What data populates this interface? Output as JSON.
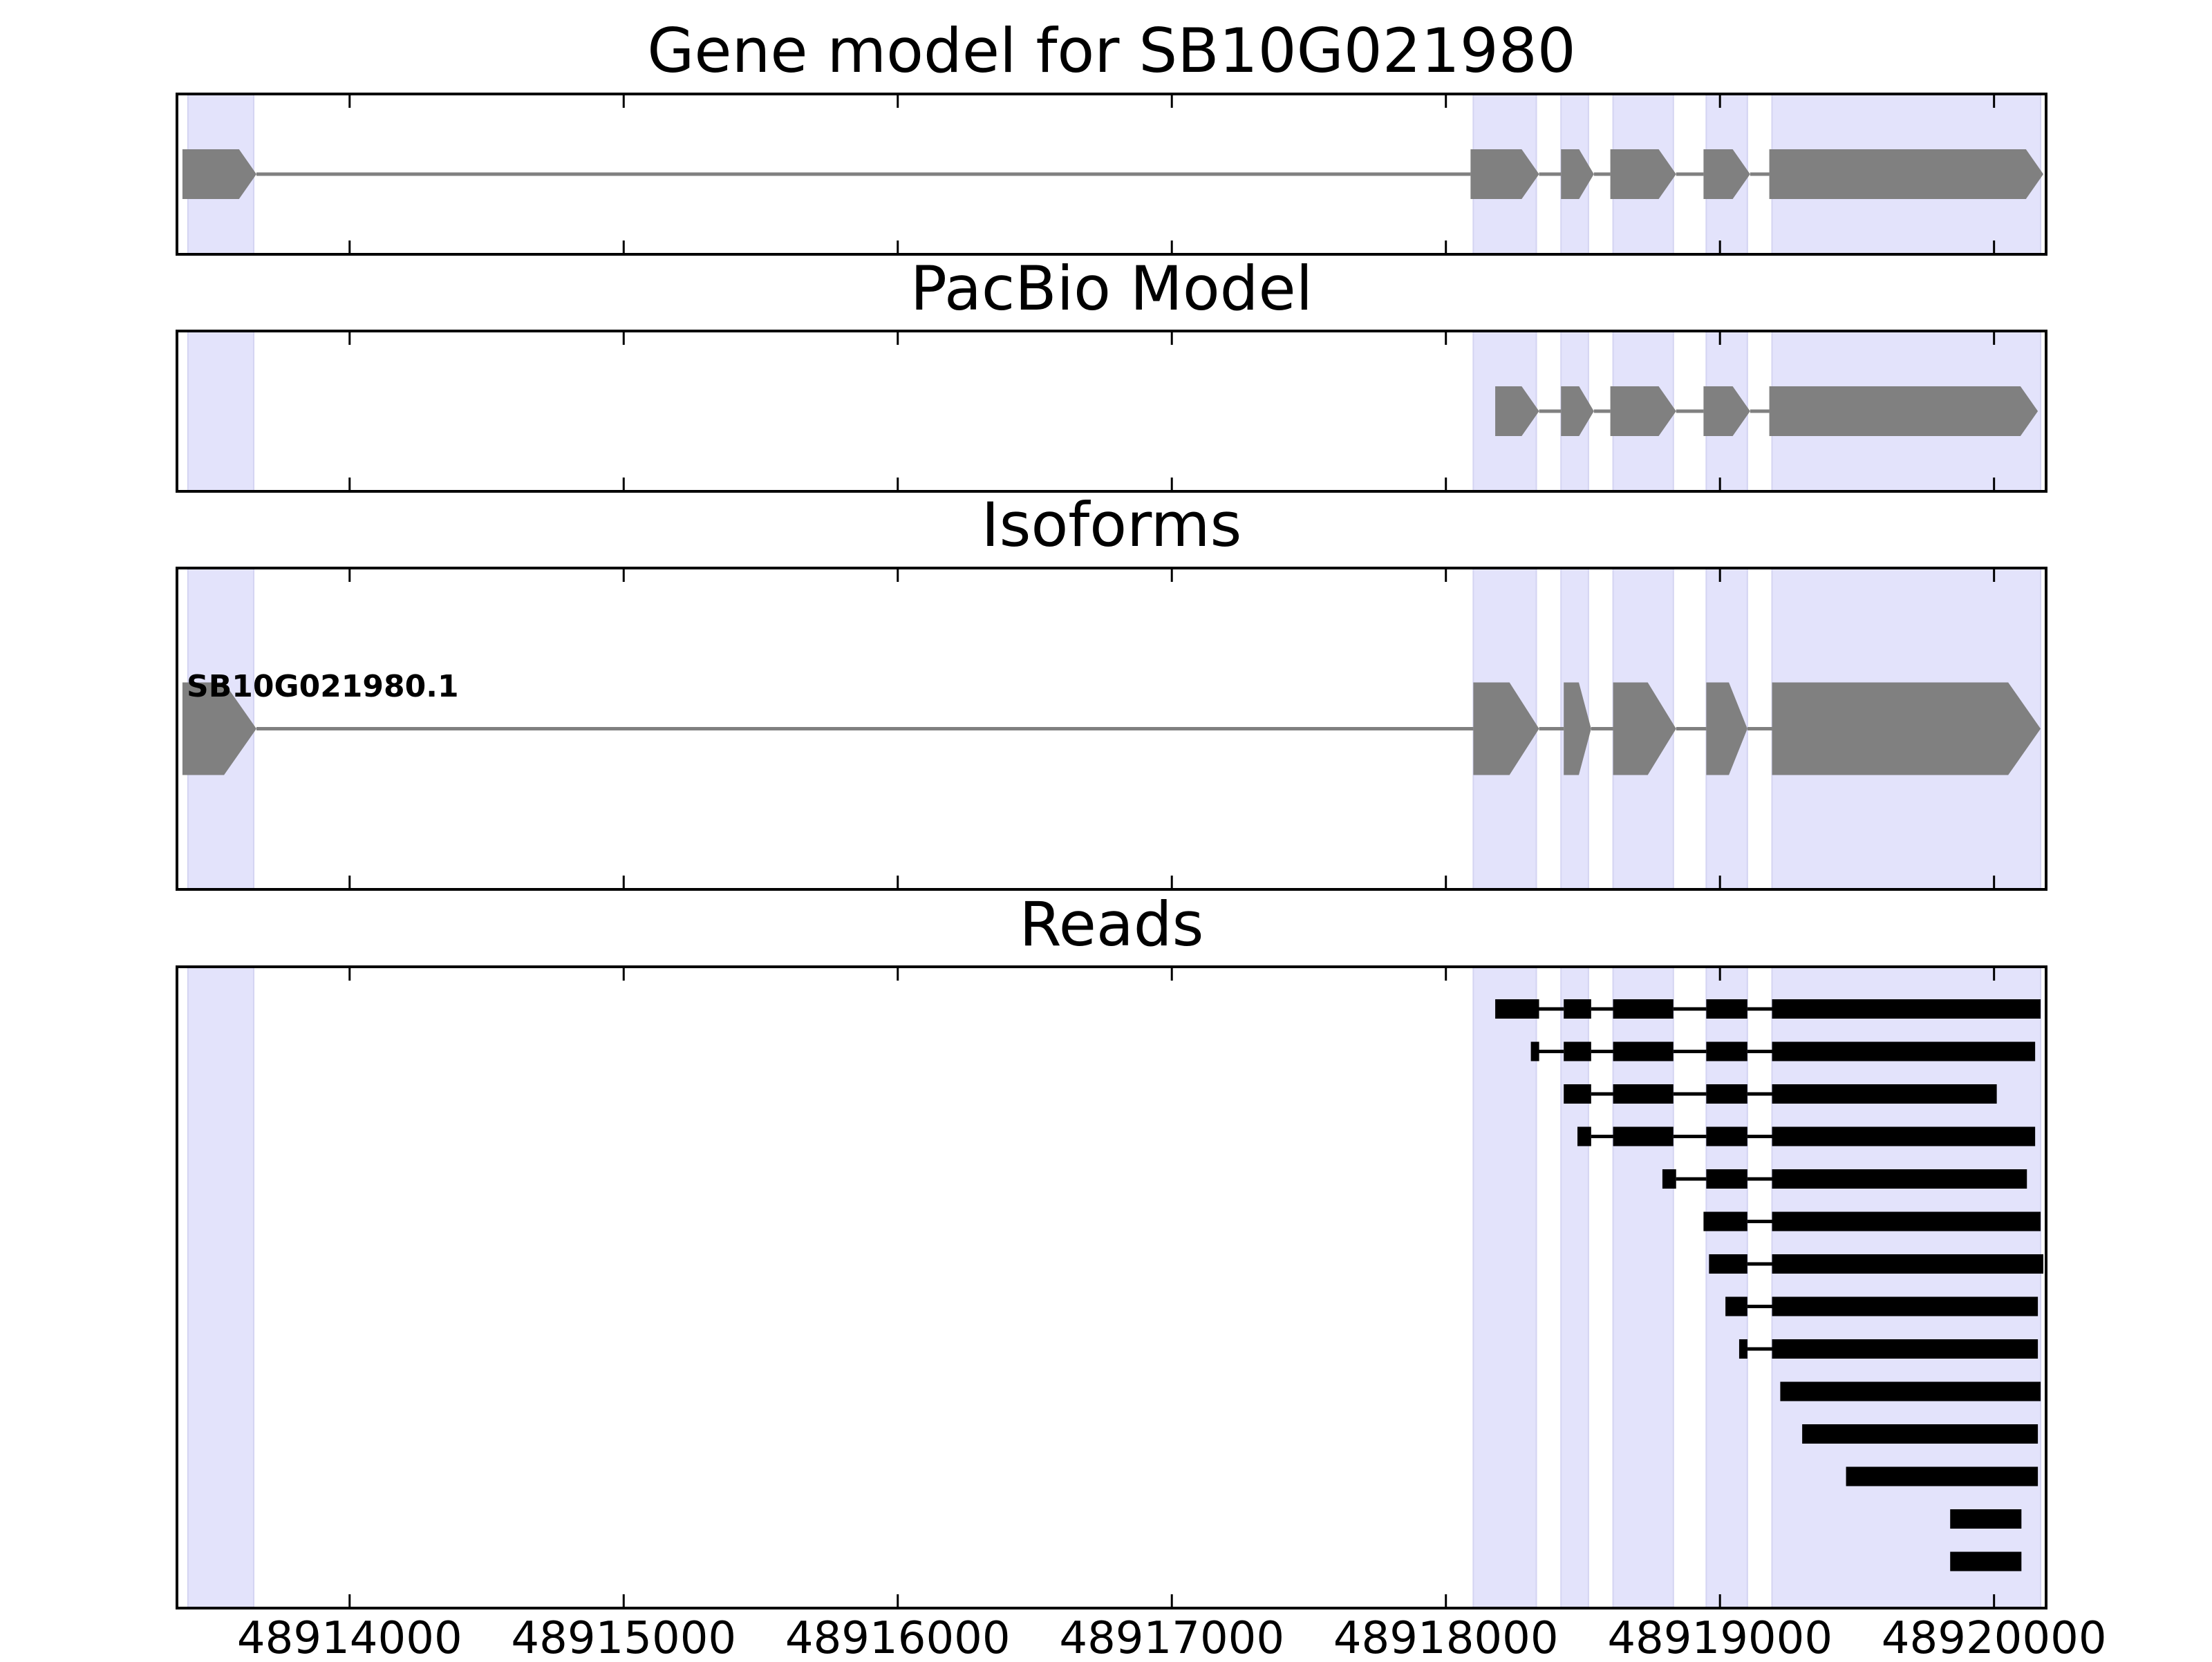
{
  "chart_data": {
    "type": "gene-model",
    "xaxis": {
      "range": [
        48913370,
        48920190
      ],
      "ticks": [
        48914000,
        48915000,
        48916000,
        48917000,
        48918000,
        48919000,
        48920000
      ],
      "tick_labels": [
        "48914000",
        "48915000",
        "48916000",
        "48917000",
        "48918000",
        "48919000",
        "48920000"
      ]
    },
    "highlight_regions": [
      [
        48913410,
        48913650
      ],
      [
        48918100,
        48918330
      ],
      [
        48918420,
        48918520
      ],
      [
        48918610,
        48918830
      ],
      [
        48918950,
        48919100
      ],
      [
        48919190,
        48920170
      ]
    ],
    "colors": {
      "highlight": "#e3e3fb",
      "exon": "#808080",
      "intron": "#808080",
      "read": "#000000",
      "frame": "#000000"
    },
    "panels": [
      {
        "key": "gene_model",
        "title": "Gene model for SB10G021980",
        "type": "gene",
        "exons": [
          [
            48913390,
            48913660
          ],
          [
            48918090,
            48918340
          ],
          [
            48918420,
            48918540
          ],
          [
            48918600,
            48918840
          ],
          [
            48918940,
            48919110
          ],
          [
            48919180,
            48920180
          ]
        ]
      },
      {
        "key": "pacbio_model",
        "title": "PacBio Model",
        "type": "gene",
        "exons": [
          [
            48918180,
            48918340
          ],
          [
            48918420,
            48918540
          ],
          [
            48918600,
            48918840
          ],
          [
            48918940,
            48919110
          ],
          [
            48919180,
            48920160
          ]
        ]
      },
      {
        "key": "isoforms",
        "title": "Isoforms",
        "type": "gene",
        "isoform_label": "SB10G021980.1",
        "exons": [
          [
            48913390,
            48913660
          ],
          [
            48918100,
            48918340
          ],
          [
            48918430,
            48918530
          ],
          [
            48918610,
            48918840
          ],
          [
            48918950,
            48919100
          ],
          [
            48919190,
            48920170
          ]
        ]
      },
      {
        "key": "reads",
        "title": "Reads",
        "type": "reads",
        "reads": [
          [
            [
              48918180,
              48918340
            ],
            [
              48918430,
              48918530
            ],
            [
              48918610,
              48918830
            ],
            [
              48918950,
              48919100
            ],
            [
              48919190,
              48920170
            ]
          ],
          [
            [
              48918310,
              48918340
            ],
            [
              48918430,
              48918530
            ],
            [
              48918610,
              48918830
            ],
            [
              48918950,
              48919100
            ],
            [
              48919190,
              48920150
            ]
          ],
          [
            [
              48918430,
              48918530
            ],
            [
              48918610,
              48918830
            ],
            [
              48918950,
              48919100
            ],
            [
              48919190,
              48920010
            ]
          ],
          [
            [
              48918480,
              48918530
            ],
            [
              48918610,
              48918830
            ],
            [
              48918950,
              48919100
            ],
            [
              48919190,
              48920150
            ]
          ],
          [
            [
              48918790,
              48918840
            ],
            [
              48918950,
              48919100
            ],
            [
              48919190,
              48920120
            ]
          ],
          [
            [
              48918940,
              48919100
            ],
            [
              48919190,
              48920170
            ]
          ],
          [
            [
              48918960,
              48919100
            ],
            [
              48919190,
              48920180
            ]
          ],
          [
            [
              48919020,
              48919100
            ],
            [
              48919190,
              48920160
            ]
          ],
          [
            [
              48919070,
              48919100
            ],
            [
              48919190,
              48920160
            ]
          ],
          [
            [
              48919220,
              48920170
            ]
          ],
          [
            [
              48919300,
              48920160
            ]
          ],
          [
            [
              48919460,
              48920160
            ]
          ],
          [
            [
              48919840,
              48920100
            ]
          ],
          [
            [
              48919840,
              48920100
            ]
          ]
        ]
      }
    ]
  }
}
